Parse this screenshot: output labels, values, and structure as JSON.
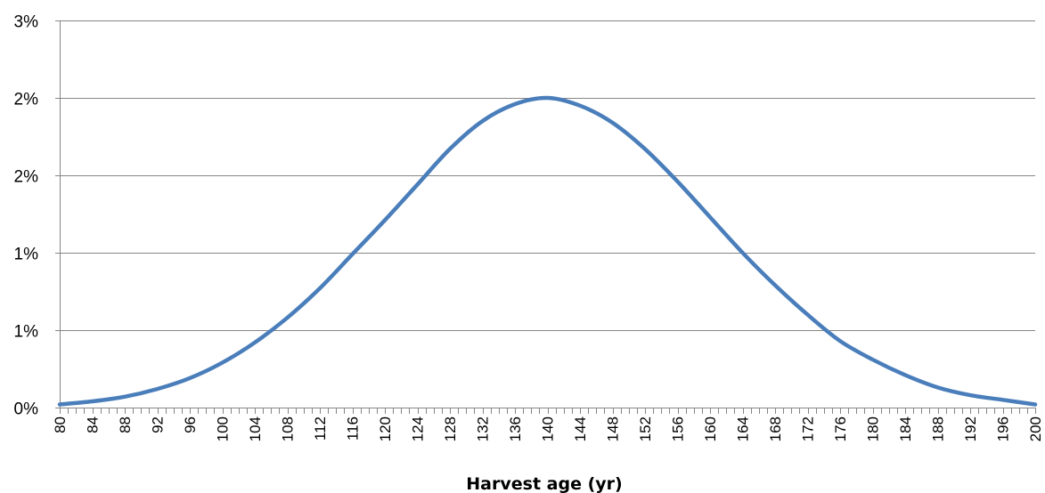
{
  "chart_data": {
    "type": "line",
    "title": "",
    "xlabel": "Harvest age (yr)",
    "ylabel": "",
    "x_range": [
      80,
      200
    ],
    "y_range": [
      0,
      2.5
    ],
    "y_gridlines": [
      0,
      0.5,
      1.0,
      1.5,
      2.0,
      2.5
    ],
    "y_tick_labels": [
      "0%",
      "1%",
      "1%",
      "2%",
      "2%",
      "3%"
    ],
    "x_tick_labels": [
      "80",
      "84",
      "88",
      "92",
      "96",
      "100",
      "104",
      "108",
      "112",
      "116",
      "120",
      "124",
      "128",
      "132",
      "136",
      "140",
      "144",
      "148",
      "152",
      "156",
      "160",
      "164",
      "168",
      "172",
      "176",
      "180",
      "184",
      "188",
      "192",
      "196",
      "200"
    ],
    "grid": true,
    "legend": "none",
    "line_color": "#4a7ebb",
    "series": [
      {
        "x": [
          80,
          84,
          88,
          92,
          96,
          100,
          104,
          108,
          112,
          116,
          120,
          124,
          128,
          132,
          136,
          140,
          144,
          148,
          152,
          156,
          160,
          164,
          168,
          172,
          176,
          180,
          184,
          188,
          192,
          196,
          200
        ],
        "values": [
          0.02,
          0.04,
          0.07,
          0.12,
          0.19,
          0.29,
          0.42,
          0.58,
          0.77,
          0.99,
          1.21,
          1.44,
          1.67,
          1.85,
          1.96,
          2.0,
          1.95,
          1.84,
          1.67,
          1.46,
          1.23,
          1.0,
          0.79,
          0.6,
          0.43,
          0.31,
          0.21,
          0.13,
          0.08,
          0.05,
          0.02
        ]
      }
    ]
  }
}
